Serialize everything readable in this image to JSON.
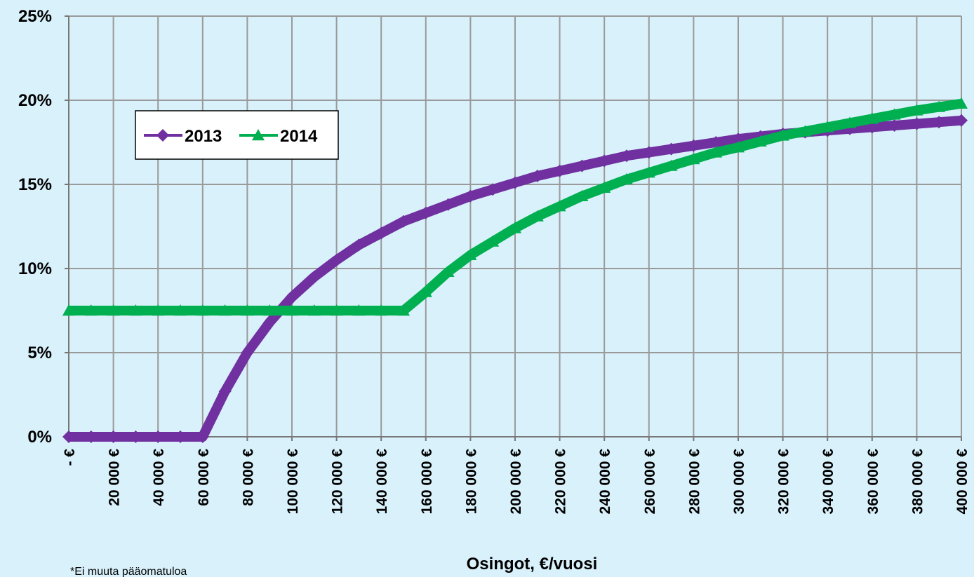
{
  "chart_data": {
    "type": "line",
    "xlabel": "Osingot, €/vuosi",
    "annotations": [
      "*Ei muuta pääomatuloa"
    ],
    "x": [
      0,
      10000,
      20000,
      30000,
      40000,
      50000,
      60000,
      70000,
      80000,
      90000,
      100000,
      110000,
      120000,
      130000,
      140000,
      150000,
      160000,
      170000,
      180000,
      190000,
      200000,
      210000,
      220000,
      230000,
      240000,
      250000,
      260000,
      270000,
      280000,
      290000,
      300000,
      310000,
      320000,
      330000,
      340000,
      350000,
      360000,
      370000,
      380000,
      390000,
      400000
    ],
    "series": [
      {
        "name": "2013",
        "color": "#7030a0",
        "marker": "diamond",
        "values": [
          0,
          0,
          0,
          0,
          0,
          0,
          0,
          2.7,
          5.0,
          6.8,
          8.3,
          9.5,
          10.5,
          11.4,
          12.1,
          12.8,
          13.3,
          13.8,
          14.3,
          14.7,
          15.1,
          15.5,
          15.8,
          16.1,
          16.4,
          16.7,
          16.9,
          17.1,
          17.3,
          17.5,
          17.7,
          17.85,
          18.0,
          18.1,
          18.2,
          18.3,
          18.4,
          18.5,
          18.6,
          18.7,
          18.8
        ]
      },
      {
        "name": "2014",
        "color": "#00b050",
        "marker": "triangle",
        "values": [
          7.5,
          7.5,
          7.5,
          7.5,
          7.5,
          7.5,
          7.5,
          7.5,
          7.5,
          7.5,
          7.5,
          7.5,
          7.5,
          7.5,
          7.5,
          7.5,
          8.6,
          9.8,
          10.8,
          11.6,
          12.4,
          13.1,
          13.7,
          14.3,
          14.8,
          15.3,
          15.7,
          16.1,
          16.5,
          16.9,
          17.2,
          17.55,
          17.9,
          18.15,
          18.4,
          18.65,
          18.9,
          19.15,
          19.4,
          19.6,
          19.8
        ]
      }
    ],
    "xlim": [
      0,
      400000
    ],
    "xticks": [
      {
        "value": 0,
        "label": "- €"
      },
      {
        "value": 20000,
        "label": "20 000 €"
      },
      {
        "value": 40000,
        "label": "40 000 €"
      },
      {
        "value": 60000,
        "label": "60 000 €"
      },
      {
        "value": 80000,
        "label": "80 000 €"
      },
      {
        "value": 100000,
        "label": "100 000 €"
      },
      {
        "value": 120000,
        "label": "120 000 €"
      },
      {
        "value": 140000,
        "label": "140 000 €"
      },
      {
        "value": 160000,
        "label": "160 000 €"
      },
      {
        "value": 180000,
        "label": "180 000 €"
      },
      {
        "value": 200000,
        "label": "200 000 €"
      },
      {
        "value": 220000,
        "label": "220 000 €"
      },
      {
        "value": 240000,
        "label": "240 000 €"
      },
      {
        "value": 260000,
        "label": "260 000 €"
      },
      {
        "value": 280000,
        "label": "280 000 €"
      },
      {
        "value": 300000,
        "label": "300 000 €"
      },
      {
        "value": 320000,
        "label": "320 000 €"
      },
      {
        "value": 340000,
        "label": "340 000 €"
      },
      {
        "value": 360000,
        "label": "360 000 €"
      },
      {
        "value": 380000,
        "label": "380 000 €"
      },
      {
        "value": 400000,
        "label": "400 000 €"
      }
    ],
    "ylim": [
      0,
      25
    ],
    "yticks": [
      {
        "value": 0,
        "label": "0%"
      },
      {
        "value": 5,
        "label": "5%"
      },
      {
        "value": 10,
        "label": "10%"
      },
      {
        "value": 15,
        "label": "15%"
      },
      {
        "value": 20,
        "label": "20%"
      },
      {
        "value": 25,
        "label": "25%"
      }
    ],
    "grid": true,
    "legend": "upper left"
  }
}
